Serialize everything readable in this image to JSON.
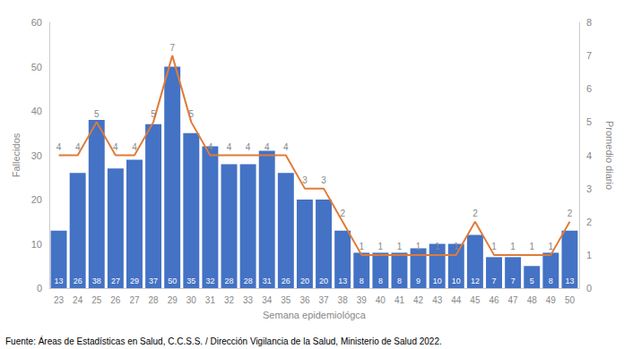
{
  "chart_data": {
    "type": "bar",
    "xlabel": "Semana epidemiológca",
    "ylabel": "Fallecidos",
    "y2label": "Promedio diario",
    "annotations": [
      "Fuente: Áreas de Estadísticas en Salud, C.C.S.S. / Dirección Vigilancia de la Salud, Ministerio de Salud 2022."
    ],
    "categories": [
      "23",
      "24",
      "25",
      "26",
      "27",
      "28",
      "29",
      "30",
      "31",
      "32",
      "33",
      "34",
      "35",
      "36",
      "37",
      "38",
      "39",
      "40",
      "41",
      "42",
      "43",
      "44",
      "45",
      "46",
      "47",
      "48",
      "49",
      "50"
    ],
    "series": [
      {
        "type": "bar",
        "color": "#4472C4",
        "data_labels": true,
        "values": [
          13,
          26,
          38,
          27,
          29,
          37,
          50,
          35,
          32,
          28,
          28,
          31,
          26,
          20,
          20,
          13,
          8,
          8,
          8,
          9,
          10,
          10,
          12,
          7,
          7,
          5,
          8,
          13
        ]
      },
      {
        "type": "line",
        "color": "#E07B39",
        "axis": "y2",
        "data_labels": true,
        "values": [
          4,
          4,
          5,
          4,
          4,
          5,
          7,
          5,
          4,
          4,
          4,
          4,
          4,
          3,
          3,
          2,
          1,
          1,
          1,
          1,
          1,
          1,
          2,
          1,
          1,
          1,
          1,
          2
        ]
      }
    ],
    "ylim": [
      0,
      60
    ],
    "yticks": [
      0,
      10,
      20,
      30,
      40,
      50,
      60
    ],
    "y2lim": [
      0,
      8
    ],
    "y2ticks": [
      0,
      1,
      2,
      3,
      4,
      5,
      6,
      7,
      8
    ],
    "grid": false
  }
}
